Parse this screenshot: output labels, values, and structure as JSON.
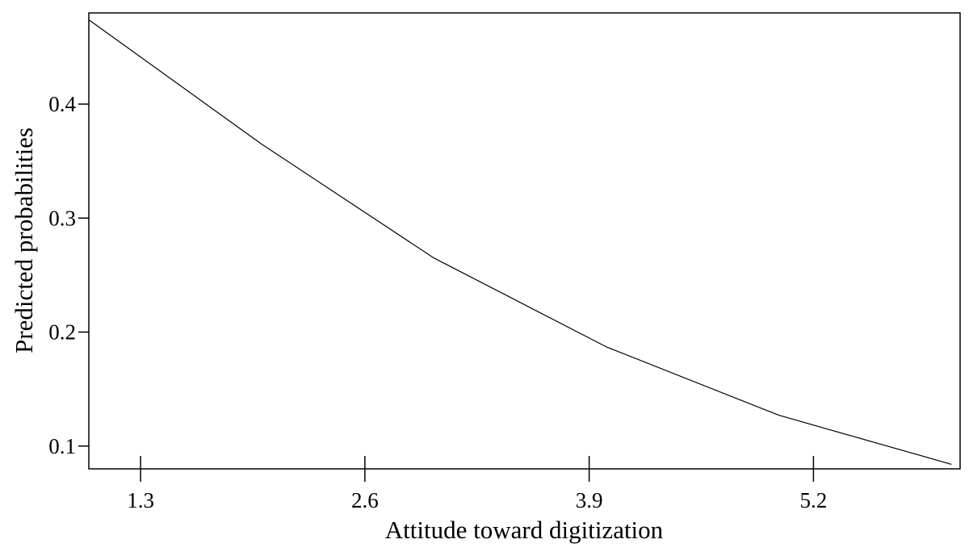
{
  "chart_data": {
    "type": "line",
    "title": "",
    "xlabel": "Attitude toward digitization",
    "ylabel": "Predicted probabilities",
    "xlim": [
      1.0,
      6.05
    ],
    "ylim": [
      0.08,
      0.48
    ],
    "x_ticks": [
      1.3,
      2.6,
      3.9,
      5.2
    ],
    "x_tick_labels": [
      "1.3",
      "2.6",
      "3.9",
      "5.2"
    ],
    "y_ticks": [
      0.1,
      0.2,
      0.3,
      0.4
    ],
    "y_tick_labels": [
      "0.1",
      "0.2",
      "0.3",
      "0.4"
    ],
    "grid": false,
    "legend": "none",
    "series": [
      {
        "x": [
          1.0,
          2.0,
          3.0,
          4.0,
          5.0,
          6.0
        ],
        "y": [
          0.474,
          0.365,
          0.265,
          0.187,
          0.127,
          0.084
        ]
      }
    ],
    "colors": {
      "line": "#000000",
      "axis": "#000000",
      "background": "#ffffff"
    }
  }
}
